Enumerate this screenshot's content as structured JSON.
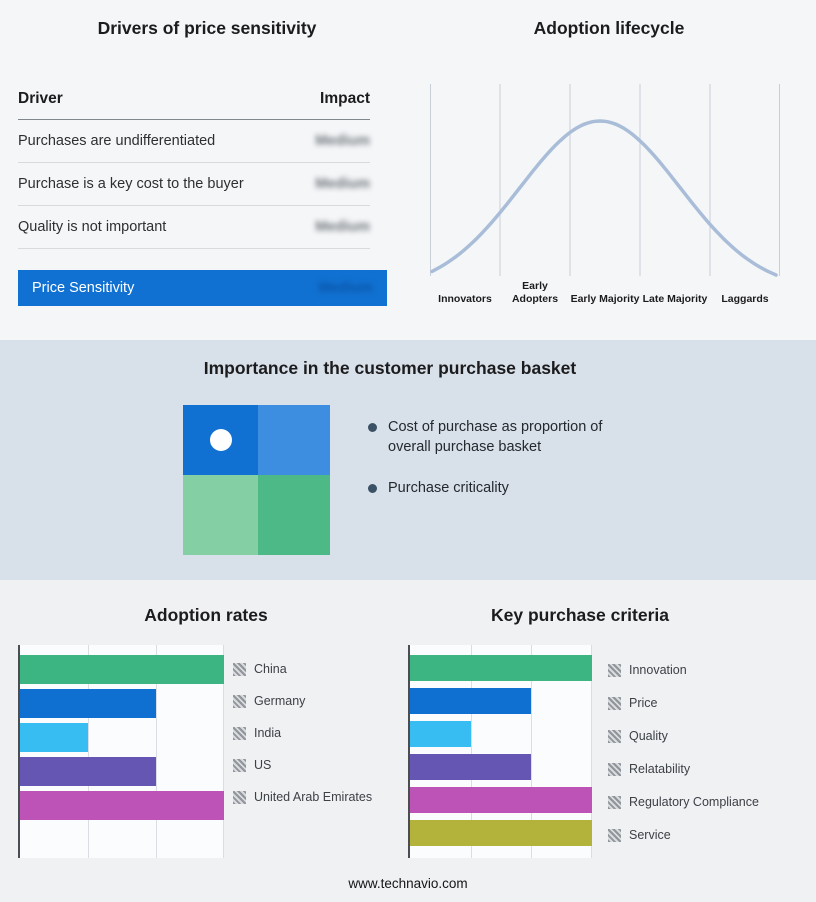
{
  "drivers_panel": {
    "title": "Drivers of price sensitivity",
    "columns": {
      "driver": "Driver",
      "impact": "Impact"
    },
    "rows": [
      {
        "driver": "Purchases are undifferentiated",
        "impact": "Medium"
      },
      {
        "driver": "Purchase is a key cost to the buyer",
        "impact": "Medium"
      },
      {
        "driver": "Quality is not important",
        "impact": "Medium"
      }
    ],
    "summary_row": {
      "label": "Price Sensitivity",
      "impact": "Medium"
    },
    "summary_color": "#1171d2",
    "impact_values_blurred": true
  },
  "lifecycle_panel": {
    "title": "Adoption lifecycle",
    "curve_color": "#a9bdd8"
  },
  "basket_panel": {
    "title": "Importance in the customer purchase basket",
    "bullets": [
      "Cost of purchase as proportion of overall purchase basket",
      "Purchase criticality"
    ],
    "quadrants": {
      "top_left": "#1171d2",
      "top_right": "#3d8ee0",
      "bottom_left": "#84cfa4",
      "bottom_right": "#4db987"
    }
  },
  "footer": {
    "url": "www.technavio.com"
  },
  "chart_data": [
    {
      "name": "adoption_lifecycle",
      "type": "line",
      "title": "Adoption lifecycle",
      "shape": "bell-curve",
      "categories": [
        "Innovators",
        "Early Adopters",
        "Early Majority",
        "Late Majority",
        "Laggards"
      ],
      "grid": "vertical",
      "legend_position": "none"
    },
    {
      "name": "adoption_rates",
      "type": "bar",
      "title": "Adoption rates",
      "orientation": "horizontal",
      "categories": [
        "China",
        "Germany",
        "India",
        "US",
        "United Arab Emirates"
      ],
      "values": [
        3,
        2,
        1,
        2,
        3
      ],
      "xlim": [
        0,
        3
      ],
      "grid": "vertical",
      "colors": [
        "#3cb583",
        "#1070d2",
        "#38bdf2",
        "#6456b2",
        "#bd53b6"
      ],
      "legend_position": "right"
    },
    {
      "name": "key_purchase_criteria",
      "type": "bar",
      "title": "Key purchase criteria",
      "orientation": "horizontal",
      "categories": [
        "Innovation",
        "Price",
        "Quality",
        "Relatability",
        "Regulatory Compliance",
        "Service"
      ],
      "values": [
        3,
        2,
        1,
        2,
        3,
        3
      ],
      "xlim": [
        0,
        3
      ],
      "grid": "vertical",
      "colors": [
        "#3cb583",
        "#1070d2",
        "#38bdf2",
        "#6456b2",
        "#bd53b6",
        "#b3b23a"
      ],
      "legend_position": "right"
    }
  ]
}
